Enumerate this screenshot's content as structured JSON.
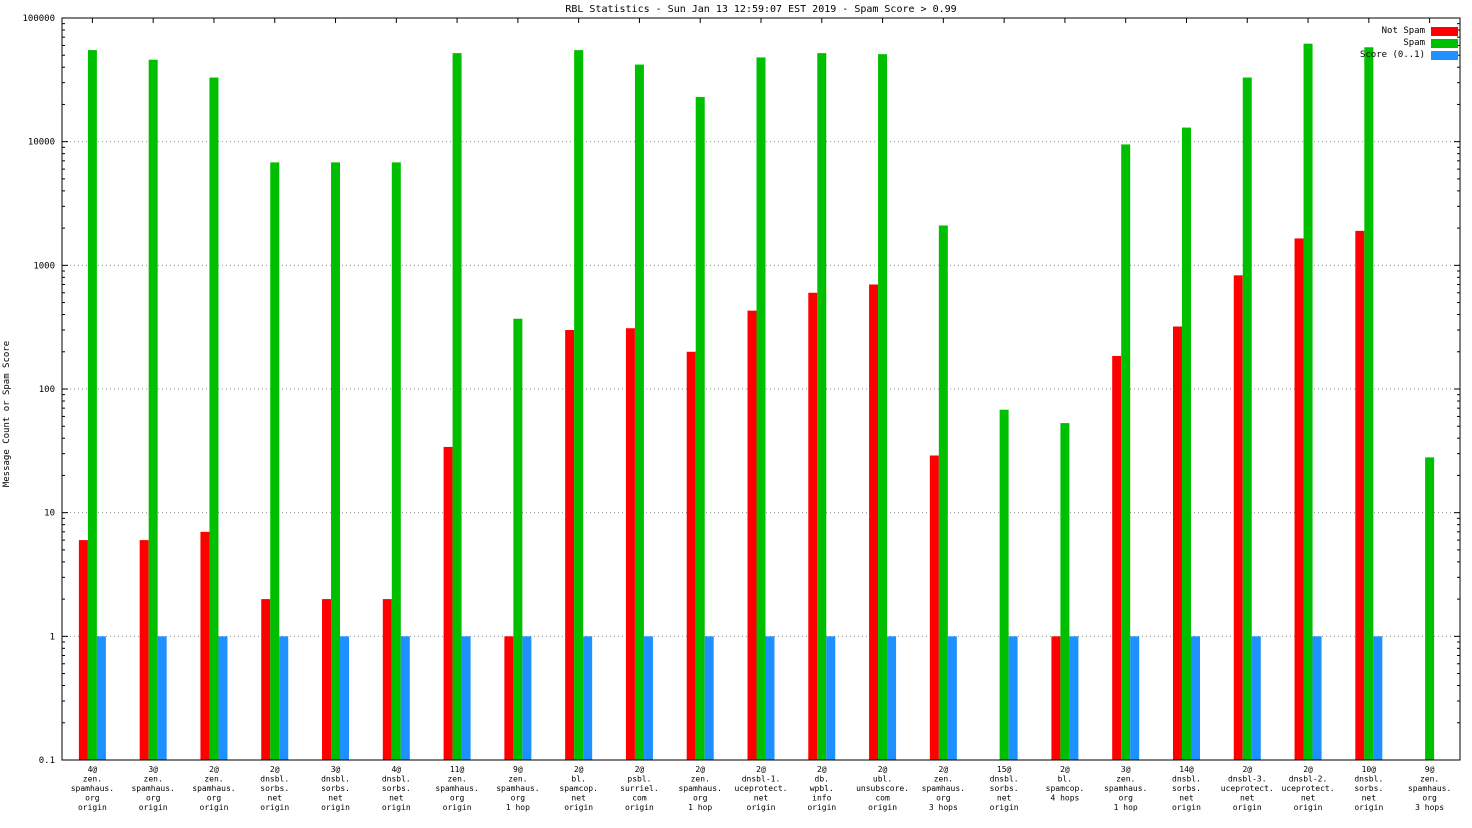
{
  "title": "RBL Statistics - Sun Jan 13 12:59:07 EST 2019 - Spam Score > 0.99",
  "ylabel": "Message Count or Spam Score",
  "colors": {
    "not_spam": "#ff0000",
    "spam": "#00bf00",
    "score": "#1e90ff",
    "grid": "#909090",
    "axis": "#000000"
  },
  "chart_data": {
    "type": "bar",
    "yscale": "log",
    "ylim": [
      0.1,
      100000
    ],
    "yticks": [
      0.1,
      1,
      10,
      100,
      1000,
      10000,
      100000
    ],
    "ytick_labels": [
      "0.1",
      "1",
      "10",
      "100",
      "1000",
      "10000",
      "100000"
    ],
    "grid": "dotted horizontal lines at decades",
    "legend_position": "top-right",
    "title": "RBL Statistics - Sun Jan 13 12:59:07 EST 2019 - Spam Score > 0.99",
    "xlabel": "",
    "ylabel": "Message Count or Spam Score",
    "categories": [
      [
        "4@",
        "zen.",
        "spamhaus.",
        "org",
        "origin"
      ],
      [
        "3@",
        "zen.",
        "spamhaus.",
        "org",
        "origin"
      ],
      [
        "2@",
        "zen.",
        "spamhaus.",
        "org",
        "origin"
      ],
      [
        "2@",
        "dnsbl.",
        "sorbs.",
        "net",
        "origin"
      ],
      [
        "3@",
        "dnsbl.",
        "sorbs.",
        "net",
        "origin"
      ],
      [
        "4@",
        "dnsbl.",
        "sorbs.",
        "net",
        "origin"
      ],
      [
        "11@",
        "zen.",
        "spamhaus.",
        "org",
        "origin"
      ],
      [
        "9@",
        "zen.",
        "spamhaus.",
        "org",
        "1 hop"
      ],
      [
        "2@",
        "bl.",
        "spamcop.",
        "net",
        "origin"
      ],
      [
        "2@",
        "psbl.",
        "surriel.",
        "com",
        "origin"
      ],
      [
        "2@",
        "zen.",
        "spamhaus.",
        "org",
        "1 hop"
      ],
      [
        "2@",
        "dnsbl-1.",
        "uceprotect.",
        "net",
        "origin"
      ],
      [
        "2@",
        "db.",
        "wpbl.",
        "info",
        "origin"
      ],
      [
        "2@",
        "ubl.",
        "unsubscore.",
        "com",
        "origin"
      ],
      [
        "2@",
        "zen.",
        "spamhaus.",
        "org",
        "3 hops"
      ],
      [
        "15@",
        "dnsbl.",
        "sorbs.",
        "net",
        "origin"
      ],
      [
        "2@",
        "bl.",
        "spamcop.",
        "4 hops"
      ],
      [
        "3@",
        "zen.",
        "spamhaus.",
        "org",
        "1 hop"
      ],
      [
        "14@",
        "dnsbl.",
        "sorbs.",
        "net",
        "origin"
      ],
      [
        "2@",
        "dnsbl-3.",
        "uceprotect.",
        "net",
        "origin"
      ],
      [
        "2@",
        "dnsbl-2.",
        "uceprotect.",
        "net",
        "origin"
      ],
      [
        "10@",
        "dnsbl.",
        "sorbs.",
        "net",
        "origin"
      ],
      [
        "9@",
        "zen.",
        "spamhaus.",
        "org",
        "3 hops"
      ]
    ],
    "series": [
      {
        "name": "Not Spam",
        "color": "#ff0000",
        "values": [
          6,
          6,
          7,
          2,
          2,
          2,
          34,
          1,
          300,
          310,
          200,
          430,
          600,
          700,
          29,
          0,
          1,
          185,
          320,
          830,
          1650,
          1900,
          0
        ]
      },
      {
        "name": "Spam",
        "color": "#00bf00",
        "values": [
          55000,
          46000,
          33000,
          6800,
          6800,
          6800,
          52000,
          370,
          55000,
          42000,
          23000,
          48000,
          52000,
          51000,
          2100,
          68,
          53,
          9500,
          13000,
          33000,
          62000,
          58000,
          28
        ]
      },
      {
        "name": "Score (0..1)",
        "color": "#1e90ff",
        "values": [
          1,
          1,
          1,
          1,
          1,
          1,
          1,
          1,
          1,
          1,
          1,
          1,
          1,
          1,
          1,
          1,
          1,
          1,
          1,
          1,
          1,
          1,
          0
        ]
      }
    ]
  }
}
